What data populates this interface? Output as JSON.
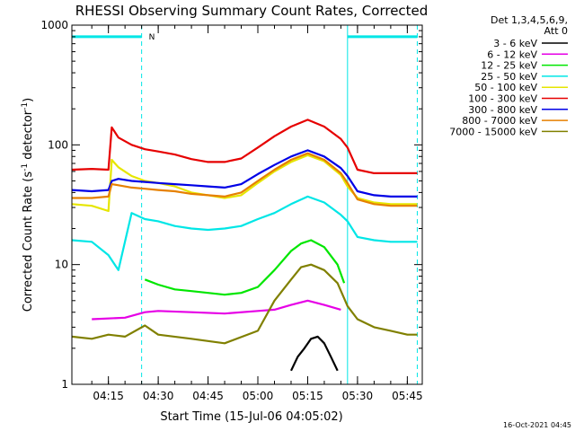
{
  "chart_data": {
    "type": "line",
    "title": "RHESSI Observing Summary Count Rates, Corrected",
    "xlabel": "Start Time (15-Jul-06 04:05:02)",
    "ylabel_main": "Corrected Count Rate (s",
    "ylabel_sup": "-1",
    "ylabel_tail": " detector",
    "ylabel_close": ")",
    "yscale": "log",
    "ylim": [
      1,
      1000
    ],
    "xlim_minutes": [
      244.0,
      349.5
    ],
    "x_tick_labels": [
      "04:15",
      "04:30",
      "04:45",
      "05:00",
      "05:15",
      "05:30",
      "05:45"
    ],
    "x_tick_minutes": [
      255,
      270,
      285,
      300,
      315,
      330,
      345
    ],
    "y_tick_labels": [
      "1",
      "10",
      "100",
      "1000"
    ],
    "y_tick_values": [
      1,
      10,
      100,
      1000
    ],
    "grid": false,
    "legend_position": "right",
    "legend_header": [
      "Det 1,3,4,5,6,9,",
      "Att 0"
    ],
    "footer_date": "16-Oct-2021 04:45",
    "night_markers_minutes": [
      244.0,
      265.0,
      327.0,
      348.0
    ],
    "attenuator_bars": [
      {
        "x_start": 244.0,
        "x_end": 265.0,
        "y": 800
      },
      {
        "x_start": 327.0,
        "x_end": 348.0,
        "y": 800
      }
    ],
    "annotation": "N",
    "series": [
      {
        "name": "3 - 6 keV",
        "color": "#000000",
        "x": [
          310,
          312,
          314,
          316,
          318,
          320,
          322,
          324
        ],
        "y": [
          1.3,
          1.7,
          2.0,
          2.4,
          2.5,
          2.2,
          1.7,
          1.3
        ]
      },
      {
        "name": "6 - 12 keV",
        "color": "#e600e6",
        "x": [
          250,
          260,
          266,
          270,
          280,
          290,
          300,
          305,
          310,
          315,
          320,
          325
        ],
        "y": [
          3.5,
          3.6,
          4.0,
          4.1,
          4.0,
          3.9,
          4.1,
          4.2,
          4.6,
          5.0,
          4.6,
          4.2
        ]
      },
      {
        "name": "12 - 25 keV",
        "color": "#00e600",
        "x": [
          266,
          270,
          275,
          280,
          285,
          290,
          295,
          300,
          305,
          310,
          313,
          316,
          320,
          324,
          326
        ],
        "y": [
          7.5,
          6.8,
          6.2,
          6.0,
          5.8,
          5.6,
          5.8,
          6.5,
          9.0,
          13.0,
          15.0,
          16.0,
          14.0,
          10.0,
          7.0
        ]
      },
      {
        "name": "25 - 50 keV",
        "color": "#00e6e6",
        "x": [
          244,
          250,
          255,
          258,
          262,
          266,
          270,
          275,
          280,
          285,
          290,
          295,
          300,
          305,
          310,
          315,
          320,
          325,
          327,
          330,
          335,
          340,
          345,
          348
        ],
        "y": [
          16.0,
          15.5,
          12.0,
          9.0,
          27.0,
          24.0,
          23.0,
          21.0,
          20.0,
          19.5,
          20.0,
          21.0,
          24.0,
          27.0,
          32.0,
          37.0,
          33.0,
          26.0,
          23.0,
          17.0,
          16.0,
          15.5,
          15.5,
          15.5
        ]
      },
      {
        "name": "50 - 100 keV",
        "color": "#e6e600",
        "x": [
          244,
          250,
          255,
          256,
          258,
          262,
          266,
          270,
          275,
          280,
          285,
          290,
          295,
          300,
          305,
          310,
          315,
          320,
          325,
          327,
          330,
          335,
          340,
          345,
          348
        ],
        "y": [
          32.0,
          31.0,
          28.0,
          75.0,
          65.0,
          55.0,
          50.0,
          48.0,
          45.0,
          40.0,
          38.0,
          36.0,
          38.0,
          48.0,
          60.0,
          72.0,
          82.0,
          73.0,
          56.0,
          45.0,
          36.0,
          33.0,
          32.0,
          32.0,
          32.0
        ]
      },
      {
        "name": "100 - 300 keV",
        "color": "#e60000",
        "x": [
          244,
          250,
          255,
          256,
          258,
          262,
          266,
          270,
          275,
          280,
          285,
          290,
          295,
          300,
          305,
          310,
          315,
          320,
          325,
          327,
          330,
          335,
          340,
          345,
          348
        ],
        "y": [
          62.0,
          63.0,
          62.0,
          140.0,
          115.0,
          100.0,
          92.0,
          88.0,
          83.0,
          76.0,
          72.0,
          72.0,
          77.0,
          95.0,
          118.0,
          142.0,
          162.0,
          142.0,
          112.0,
          95.0,
          62.0,
          58.0,
          58.0,
          58.0,
          58.0
        ]
      },
      {
        "name": "300 - 800 keV",
        "color": "#0000e6",
        "x": [
          244,
          250,
          255,
          256,
          258,
          262,
          266,
          270,
          275,
          280,
          285,
          290,
          295,
          300,
          305,
          310,
          315,
          320,
          325,
          327,
          330,
          335,
          340,
          345,
          348
        ],
        "y": [
          42.0,
          41.0,
          42.0,
          50.0,
          52.0,
          50.0,
          49.0,
          48.0,
          47.0,
          46.0,
          45.0,
          44.0,
          47.0,
          57.0,
          68.0,
          80.0,
          90.0,
          80.0,
          64.0,
          55.0,
          41.0,
          38.0,
          37.0,
          37.0,
          37.0
        ]
      },
      {
        "name": "800 - 7000 keV",
        "color": "#e68000",
        "x": [
          244,
          250,
          255,
          256,
          258,
          262,
          266,
          270,
          275,
          280,
          285,
          290,
          295,
          300,
          305,
          310,
          315,
          320,
          325,
          327,
          330,
          335,
          340,
          345,
          348
        ],
        "y": [
          36.0,
          36.0,
          37.0,
          47.0,
          46.0,
          44.0,
          43.0,
          42.0,
          41.0,
          39.0,
          38.0,
          37.0,
          40.0,
          50.0,
          62.0,
          75.0,
          85.0,
          75.0,
          58.0,
          48.0,
          35.0,
          32.0,
          31.0,
          31.0,
          31.0
        ]
      },
      {
        "name": "7000 - 15000 keV",
        "color": "#808000",
        "x": [
          244,
          250,
          255,
          260,
          266,
          270,
          280,
          290,
          300,
          305,
          310,
          313,
          316,
          320,
          324,
          327,
          330,
          335,
          340,
          345,
          348
        ],
        "y": [
          2.5,
          2.4,
          2.6,
          2.5,
          3.1,
          2.6,
          2.4,
          2.2,
          2.8,
          5.0,
          7.5,
          9.5,
          10.0,
          9.0,
          7.0,
          4.5,
          3.5,
          3.0,
          2.8,
          2.6,
          2.6
        ]
      }
    ]
  }
}
